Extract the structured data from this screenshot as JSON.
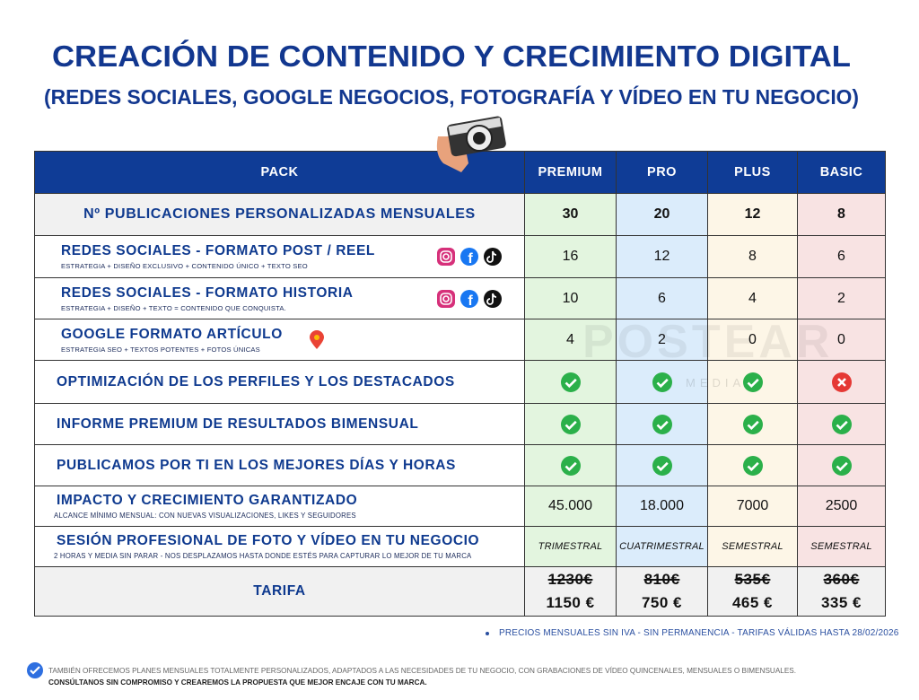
{
  "header": {
    "title": "CREACIÓN DE CONTENIDO Y CRECIMIENTO DIGITAL",
    "subtitle": "(REDES SOCIALES, GOOGLE NEGOCIOS, FOTOGRAFÍA Y VÍDEO EN TU NEGOCIO)"
  },
  "table": {
    "columns": [
      "PACK",
      "PREMIUM",
      "PRO",
      "PLUS",
      "BASIC"
    ],
    "rows": [
      {
        "label": "Nº PUBLICACIONES PERSONALIZADAS MENSUALES",
        "cells": [
          30,
          20,
          12,
          8
        ]
      },
      {
        "label": "REDES SOCIALES - FORMATO POST / REEL",
        "sublabel": "ESTRATEGIA + DISEÑO EXCLUSIVO + CONTENIDO ÚNICO + TEXTO SEO",
        "cells": [
          16,
          12,
          8,
          6
        ]
      },
      {
        "label": "REDES SOCIALES - FORMATO HISTORIA",
        "sublabel": "ESTRATEGIA + DISEÑO + TEXTO = CONTENIDO QUE CONQUISTA.",
        "cells": [
          10,
          6,
          4,
          2
        ]
      },
      {
        "label": "GOOGLE FORMATO ARTÍCULO",
        "sublabel": "ESTRATEGIA SEO + TEXTOS POTENTES + FOTOS ÚNICAS",
        "cells": [
          4,
          2,
          0,
          0
        ]
      },
      {
        "label": "OPTIMIZACIÓN DE LOS PERFILES Y LOS DESTACADOS",
        "cells": [
          true,
          true,
          true,
          false
        ]
      },
      {
        "label": "INFORME PREMIUM DE RESULTADOS BIMENSUAL",
        "cells": [
          true,
          true,
          true,
          true
        ]
      },
      {
        "label": "PUBLICAMOS POR TI EN LOS MEJORES DÍAS Y HORAS",
        "cells": [
          true,
          true,
          true,
          true
        ]
      },
      {
        "label": "IMPACTO Y CRECIMIENTO GARANTIZADO",
        "sublabel": "ALCANCE MÍNIMO MENSUAL: CON NUEVAS VISUALIZACIONES, LIKES Y SEGUIDORES",
        "cells": [
          "45.000",
          "18.000",
          7000,
          2500
        ]
      },
      {
        "label": "SESIÓN PROFESIONAL DE FOTO Y VÍDEO EN TU NEGOCIO",
        "sublabel": "2 HORAS Y MEDIA SIN PARAR - NOS DESPLAZAMOS HASTA DONDE ESTÉS PARA CAPTURAR LO MEJOR DE TU MARCA",
        "cells": [
          "TRIMESTRAL",
          "CUATRIMESTRAL",
          "SEMESTRAL",
          "SEMESTRAL"
        ]
      },
      {
        "label": "TARIFA",
        "cells": [
          {
            "old": "1230€",
            "new": "1150 €"
          },
          {
            "old": "810€",
            "new": "750 €"
          },
          {
            "old": "535€",
            "new": "465 €"
          },
          {
            "old": "360€",
            "new": "335 €"
          }
        ]
      }
    ]
  },
  "watermark": [
    "POSTEAR",
    "MEDIA"
  ],
  "footer": {
    "note": "PRECIOS MENSUALES SIN IVA - SIN PERMANENCIA  - TARIFAS VÁLIDAS HASTA 28/02/2026",
    "line1": "TAMBIÉN OFRECEMOS PLANES MENSUALES TOTALMENTE PERSONALIZADOS, ADAPTADOS A LAS NECESIDADES DE TU NEGOCIO, CON GRABACIONES DE VÍDEO QUINCENALES, MENSUALES O BIMENSUALES.",
    "line2": "CONSÚLTANOS SIN COMPROMISO Y CREAREMOS LA PROPUESTA QUE MEJOR ENCAJE CON TU MARCA."
  }
}
